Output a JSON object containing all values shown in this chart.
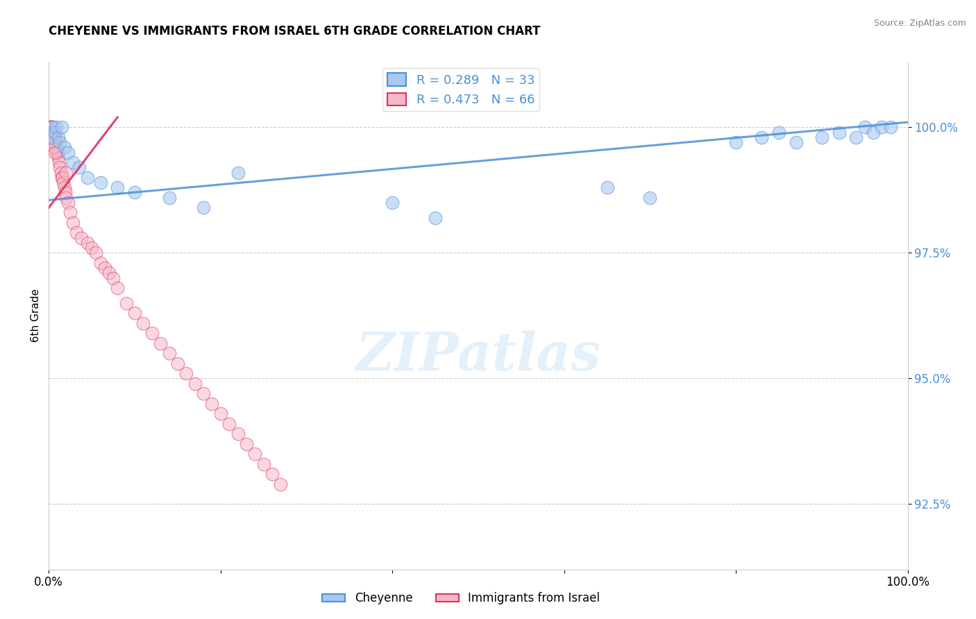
{
  "title": "CHEYENNE VS IMMIGRANTS FROM ISRAEL 6TH GRADE CORRELATION CHART",
  "source_text": "Source: ZipAtlas.com",
  "ylabel": "6th Grade",
  "watermark": "ZIPatlas",
  "xlim": [
    0.0,
    100.0
  ],
  "ylim": [
    91.2,
    101.3
  ],
  "yticks": [
    92.5,
    95.0,
    97.5,
    100.0
  ],
  "ytick_labels": [
    "92.5%",
    "95.0%",
    "97.5%",
    "100.0%"
  ],
  "blue_R": 0.289,
  "blue_N": 33,
  "pink_R": 0.473,
  "pink_N": 66,
  "blue_color": "#a8c8f0",
  "pink_color": "#f5b8c8",
  "blue_line_color": "#4a90d9",
  "pink_line_color": "#e03060",
  "legend_label_blue": "Cheyenne",
  "legend_label_pink": "Immigrants from Israel",
  "blue_trend": [
    0.0,
    100.0,
    98.55,
    100.1
  ],
  "pink_trend": [
    0.0,
    8.0,
    98.4,
    100.2
  ],
  "blue_scatter_x": [
    0.3,
    0.5,
    0.7,
    0.9,
    1.1,
    1.3,
    1.5,
    1.8,
    2.2,
    2.8,
    3.5,
    4.5,
    6.0,
    8.0,
    10.0,
    14.0,
    18.0,
    22.0,
    40.0,
    45.0,
    65.0,
    70.0,
    80.0,
    83.0,
    85.0,
    87.0,
    90.0,
    92.0,
    94.0,
    95.0,
    96.0,
    97.0,
    98.0
  ],
  "blue_scatter_y": [
    99.8,
    100.0,
    99.9,
    100.0,
    99.8,
    99.7,
    100.0,
    99.6,
    99.5,
    99.3,
    99.2,
    99.0,
    98.9,
    98.8,
    98.7,
    98.6,
    98.4,
    99.1,
    98.5,
    98.2,
    98.8,
    98.6,
    99.7,
    99.8,
    99.9,
    99.7,
    99.8,
    99.9,
    99.8,
    100.0,
    99.9,
    100.0,
    100.0
  ],
  "pink_scatter_x": [
    0.15,
    0.2,
    0.25,
    0.3,
    0.35,
    0.4,
    0.45,
    0.5,
    0.55,
    0.6,
    0.65,
    0.7,
    0.75,
    0.8,
    0.85,
    0.9,
    0.95,
    1.0,
    1.1,
    1.2,
    1.3,
    1.4,
    1.5,
    1.6,
    1.7,
    1.8,
    1.9,
    2.0,
    2.2,
    2.5,
    2.8,
    3.2,
    3.8,
    4.5,
    5.0,
    5.5,
    6.0,
    6.5,
    7.0,
    7.5,
    8.0,
    9.0,
    10.0,
    11.0,
    12.0,
    13.0,
    14.0,
    15.0,
    16.0,
    17.0,
    18.0,
    19.0,
    20.0,
    21.0,
    22.0,
    23.0,
    24.0,
    25.0,
    26.0,
    27.0,
    0.3,
    0.4,
    0.5,
    0.6,
    0.7,
    2.0
  ],
  "pink_scatter_y": [
    100.0,
    100.0,
    100.0,
    100.0,
    100.0,
    100.0,
    99.9,
    99.9,
    99.9,
    99.8,
    99.8,
    99.8,
    99.7,
    99.7,
    99.6,
    99.6,
    99.5,
    99.5,
    99.4,
    99.3,
    99.2,
    99.1,
    99.0,
    99.0,
    98.9,
    98.8,
    98.7,
    98.6,
    98.5,
    98.3,
    98.1,
    97.9,
    97.8,
    97.7,
    97.6,
    97.5,
    97.3,
    97.2,
    97.1,
    97.0,
    96.8,
    96.5,
    96.3,
    96.1,
    95.9,
    95.7,
    95.5,
    95.3,
    95.1,
    94.9,
    94.7,
    94.5,
    94.3,
    94.1,
    93.9,
    93.7,
    93.5,
    93.3,
    93.1,
    92.9,
    99.9,
    99.8,
    99.7,
    99.6,
    99.5,
    99.1
  ]
}
